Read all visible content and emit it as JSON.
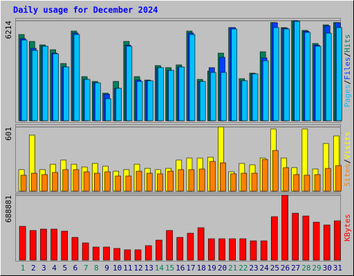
{
  "chart_data": [
    {
      "type": "bar",
      "title": "Daily usage for December 2024",
      "ylim": [
        0,
        6214
      ],
      "yticks": [
        6214
      ],
      "legend_separator": "/",
      "series": [
        {
          "name": "Hits",
          "color": "#00805C",
          "values": [
            5357,
            4928,
            4714,
            4414,
            3557,
            5571,
            2743,
            2443,
            1714,
            2443,
            4928,
            2743,
            2528,
            3428,
            3300,
            3471,
            5571,
            2571,
            3086,
            4200,
            5786,
            2614,
            2957,
            4286,
            6100,
            5786,
            6214,
            5614,
            4800,
            5957,
            6100
          ]
        },
        {
          "name": "Files",
          "color": "#0040FF",
          "values": [
            5100,
            4500,
            4628,
            4200,
            3343,
            5450,
            2571,
            2357,
            1650,
            2014,
            4700,
            2530,
            2486,
            3300,
            3128,
            3343,
            5450,
            2443,
            3300,
            3943,
            5786,
            2486,
            2914,
            3900,
            6086,
            5750,
            6214,
            5560,
            4700,
            5900,
            6086
          ]
        },
        {
          "name": "Pages",
          "color": "#00C0FF",
          "values": [
            5014,
            4371,
            4628,
            4157,
            3343,
            5357,
            2571,
            2357,
            1371,
            2014,
            4628,
            2443,
            2486,
            3300,
            3128,
            3343,
            5357,
            2443,
            3000,
            3000,
            5700,
            2486,
            2914,
            3728,
            5786,
            5700,
            6171,
            5486,
            4628,
            5443,
            5786
          ]
        }
      ]
    },
    {
      "type": "bar",
      "ylim": [
        0,
        601
      ],
      "yticks": [
        601
      ],
      "legend_separator": "/",
      "series": [
        {
          "name": "Visits",
          "color": "#FFFF00",
          "values": [
            201,
            524,
            201,
            252,
            291,
            252,
            226,
            259,
            233,
            187,
            201,
            252,
            213,
            201,
            213,
            291,
            310,
            310,
            317,
            601,
            181,
            259,
            246,
            310,
            582,
            310,
            220,
            582,
            207,
            446,
            517
          ]
        },
        {
          "name": "Sites",
          "color": "#FF8000",
          "values": [
            149,
            168,
            155,
            175,
            201,
            201,
            181,
            168,
            181,
            142,
            142,
            187,
            168,
            162,
            187,
            201,
            201,
            207,
            278,
            265,
            162,
            168,
            168,
            297,
            381,
            220,
            155,
            149,
            155,
            213,
            239
          ]
        }
      ]
    },
    {
      "type": "bar",
      "ylim": [
        0,
        688881
      ],
      "yticks": [
        688881
      ],
      "categories": [
        "1",
        "2",
        "3",
        "4",
        "5",
        "6",
        "7",
        "8",
        "9",
        "10",
        "11",
        "12",
        "13",
        "14",
        "15",
        "16",
        "17",
        "18",
        "19",
        "20",
        "21",
        "22",
        "23",
        "24",
        "25",
        "26",
        "27",
        "28",
        "29",
        "30",
        "31"
      ],
      "highlight_color": "#00805C",
      "highlight_indices": [
        0,
        6,
        7,
        13,
        14,
        20,
        21,
        27,
        28
      ],
      "series": [
        {
          "name": "KBytes",
          "color": "#FF0000",
          "values": [
            359100,
            315100,
            329800,
            329800,
            307800,
            241800,
            183200,
            139200,
            139200,
            124600,
            109900,
            109900,
            153900,
            212500,
            315100,
            241800,
            285800,
            344400,
            227200,
            227200,
            227200,
            227200,
            205200,
            205200,
            461700,
            688881,
            498300,
            469000,
            403100,
            373800,
            417700
          ]
        }
      ]
    }
  ]
}
